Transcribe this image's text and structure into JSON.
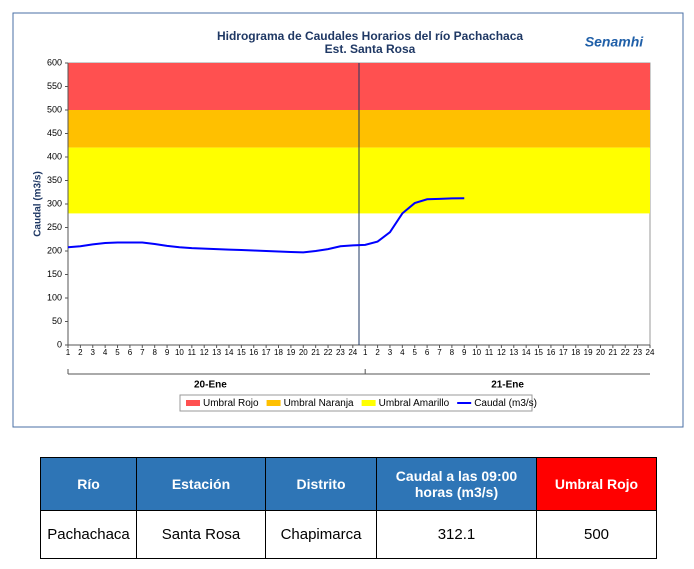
{
  "chart_data": {
    "type": "line",
    "title": "Hidrograma de Caudales Horarios del río Pachachaca",
    "subtitle": "Est. Santa Rosa",
    "ylabel": "Caudal  (m3/s)",
    "logo": "Senamhi",
    "categories": [
      "1",
      "2",
      "3",
      "4",
      "5",
      "6",
      "7",
      "8",
      "9",
      "10",
      "11",
      "12",
      "13",
      "14",
      "15",
      "16",
      "17",
      "18",
      "19",
      "20",
      "21",
      "22",
      "23",
      "24",
      "1",
      "2",
      "3",
      "4",
      "5",
      "6",
      "7",
      "8",
      "9",
      "10",
      "11",
      "12",
      "13",
      "14",
      "15",
      "16",
      "17",
      "18",
      "19",
      "20",
      "21",
      "22",
      "23",
      "24"
    ],
    "groups": [
      "20-Ene",
      "21-Ene"
    ],
    "series": [
      {
        "name": "Caudal (m3/s)",
        "color": "#0000ff",
        "values": [
          208,
          210,
          214,
          217,
          218,
          218,
          218,
          215,
          211,
          208,
          206,
          205,
          204,
          203,
          202,
          201,
          200,
          199,
          198,
          197,
          200,
          204,
          210,
          212,
          213,
          220,
          240,
          280,
          302,
          310,
          311,
          312,
          312.1,
          null,
          null,
          null,
          null,
          null,
          null,
          null,
          null,
          null,
          null,
          null,
          null,
          null,
          null,
          null
        ]
      }
    ],
    "bands": [
      {
        "name": "Umbral Rojo",
        "color": "#ff5050",
        "from": 500,
        "to": 600
      },
      {
        "name": "Umbral Naranja",
        "color": "#ffc000",
        "from": 420,
        "to": 500
      },
      {
        "name": "Umbral Amarillo",
        "color": "#ffff00",
        "from": 280,
        "to": 420
      }
    ],
    "ylim": [
      0,
      600
    ],
    "yticks": [
      0,
      50,
      100,
      150,
      200,
      250,
      300,
      350,
      400,
      450,
      500,
      550,
      600
    ],
    "grid": false
  },
  "table": {
    "header": [
      "Río",
      "Estación",
      "Distrito",
      "Caudal a las 09:00 horas (m3/s)",
      "Umbral Rojo"
    ],
    "rows": [
      [
        "Pachachaca",
        "Santa Rosa",
        "Chapimarca",
        312.1,
        500
      ]
    ]
  }
}
